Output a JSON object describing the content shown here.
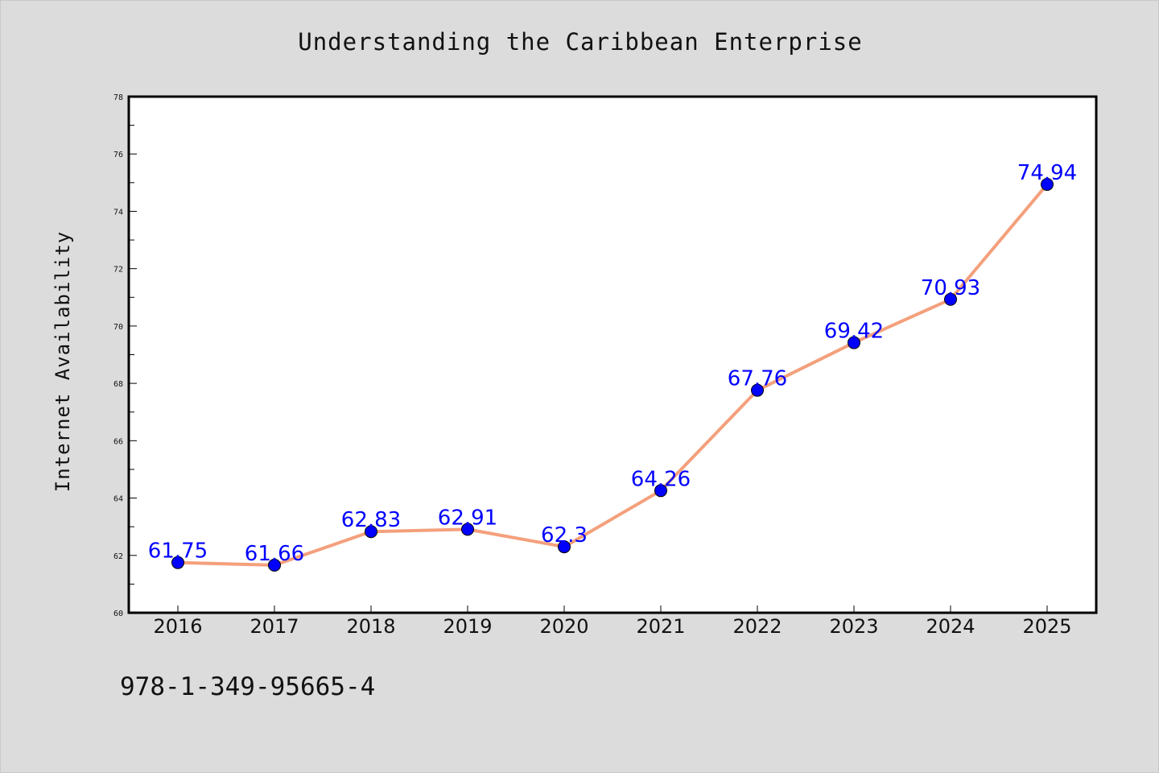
{
  "chart_data": {
    "type": "line",
    "title": "Understanding the Caribbean Enterprise",
    "xlabel": "",
    "ylabel": "Internet Availability",
    "categories": [
      "2016",
      "2017",
      "2018",
      "2019",
      "2020",
      "2021",
      "2022",
      "2023",
      "2024",
      "2025"
    ],
    "series": [
      {
        "values": [
          61.75,
          61.66,
          62.83,
          62.91,
          62.3,
          64.26,
          67.76,
          69.42,
          70.93,
          74.94
        ],
        "data_labels": [
          "61.75",
          "61.66",
          "62.83",
          "62.91",
          "62.3",
          "64.26",
          "67.76",
          "69.42",
          "70.93",
          "74.94"
        ],
        "line_color": "#f4a07c",
        "marker_color": "#0000ff"
      }
    ],
    "ylim": [
      60,
      78
    ],
    "yticks": [
      "60",
      "62",
      "64",
      "66",
      "68",
      "70",
      "72",
      "74",
      "76",
      "78"
    ],
    "grid": false,
    "legend": "none"
  },
  "footer": {
    "isbn": "978-1-349-95665-4"
  },
  "colors": {
    "background": "#dcdcdc",
    "plot_background": "#ffffff",
    "line": "#f4a07c",
    "marker": "#0000ff",
    "label": "#0000ff"
  }
}
